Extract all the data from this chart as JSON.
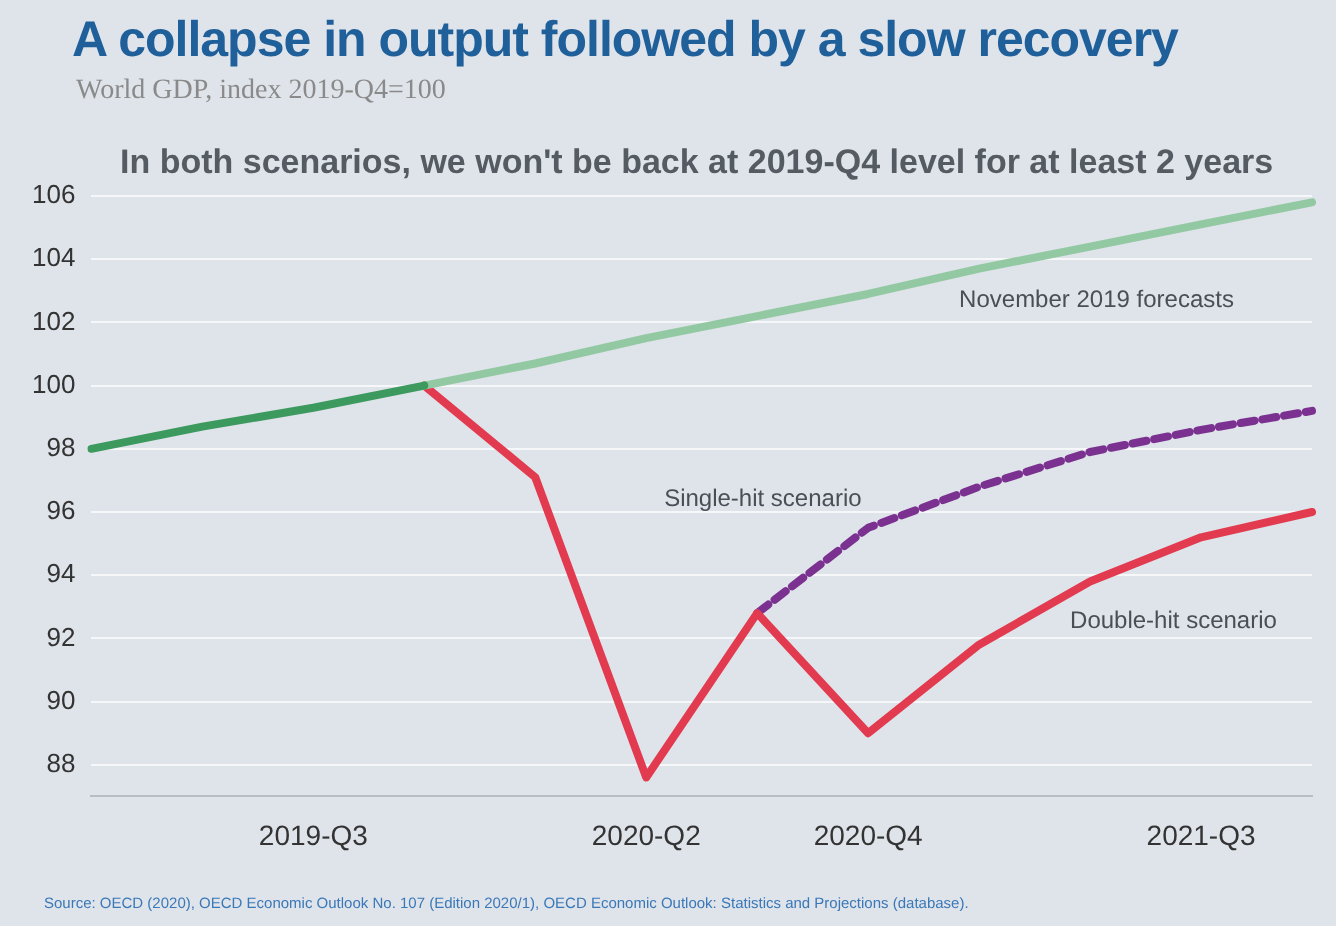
{
  "chart_data": {
    "type": "line",
    "title": "A collapse in output followed by a slow recovery",
    "subtitle": "World GDP, index 2019-Q4=100",
    "annotations": [
      "In both scenarios, we won't be back at 2019-Q4 level for at least 2 years",
      "Source: OECD (2020), OECD Economic Outlook No. 107 (Edition 2020/1), OECD Economic Outlook: Statistics and Projections (database)."
    ],
    "categories": [
      null,
      null,
      "2019-Q3",
      null,
      null,
      "2020-Q2",
      null,
      "2020-Q4",
      null,
      null,
      "2021-Q3",
      null
    ],
    "series": [
      {
        "color": "#3c9a5f",
        "values": [
          98,
          98.7,
          99.3,
          100,
          null,
          null,
          null,
          null,
          null,
          null,
          null,
          null
        ]
      },
      {
        "name": "November 2019 forecasts",
        "color": "#93c9a2",
        "values": [
          null,
          null,
          null,
          100,
          100.7,
          101.5,
          102.2,
          102.9,
          103.7,
          104.4,
          105.1,
          105.8
        ]
      },
      {
        "name": "Double-hit scenario",
        "color": "#e23a4e",
        "values": [
          null,
          null,
          null,
          100,
          97.1,
          87.6,
          92.8,
          89,
          91.8,
          93.8,
          95.2,
          96
        ]
      },
      {
        "name": "Single-hit scenario",
        "color": "#7a3190",
        "line_style": "dashed",
        "values": [
          null,
          null,
          null,
          null,
          null,
          null,
          92.8,
          95.5,
          96.8,
          97.9,
          98.6,
          99.2
        ]
      }
    ],
    "ylim": [
      87,
      106
    ],
    "yticks": [
      88,
      90,
      92,
      94,
      96,
      98,
      100,
      102,
      104,
      106
    ],
    "grid": "y",
    "legend": false
  }
}
